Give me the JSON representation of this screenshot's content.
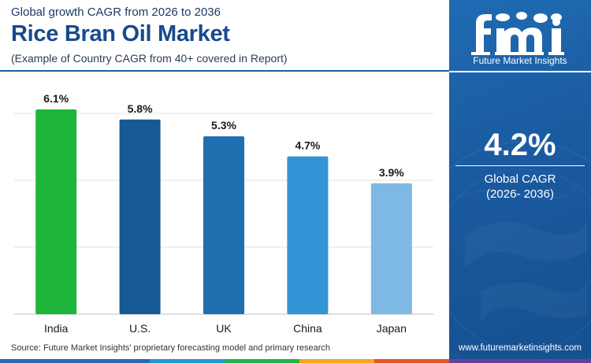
{
  "header": {
    "subtitle": "Global growth CAGR from 2026 to 2036",
    "title": "Rice Bran Oil Market",
    "note": "(Example of Country CAGR from 40+ covered in Report)"
  },
  "chart_data": {
    "type": "bar",
    "categories": [
      "India",
      "U.S.",
      "UK",
      "China",
      "Japan"
    ],
    "values": [
      6.1,
      5.8,
      5.3,
      4.7,
      3.9
    ],
    "value_labels": [
      "6.1%",
      "5.8%",
      "5.3%",
      "4.7%",
      "3.9%"
    ],
    "bar_colors": [
      "#1db53a",
      "#165a94",
      "#1d6fb0",
      "#3293d5",
      "#7db9e2"
    ],
    "ylim": [
      0,
      6.1
    ],
    "grid": true,
    "title": "",
    "xlabel": "",
    "ylabel": ""
  },
  "source": "Source: Future Market Insights' proprietary forecasting model and primary research",
  "sidebar": {
    "logo_text": "Future Market Insights",
    "kpi_value": "4.2%",
    "kpi_label_line1": "Global CAGR",
    "kpi_label_line2": "(2026- 2036)",
    "url": "www.futuremarketinsights.com"
  },
  "colors": {
    "title": "#174a8c",
    "sidebar_bg": "#1a5aa0",
    "strip": [
      "#2b68b0",
      "#1d9bd8",
      "#23b14d",
      "#f5a81e",
      "#e6532a",
      "#6a3fa0"
    ]
  },
  "icons": [
    "fmi-logo-icon",
    "globe-map-icon"
  ]
}
